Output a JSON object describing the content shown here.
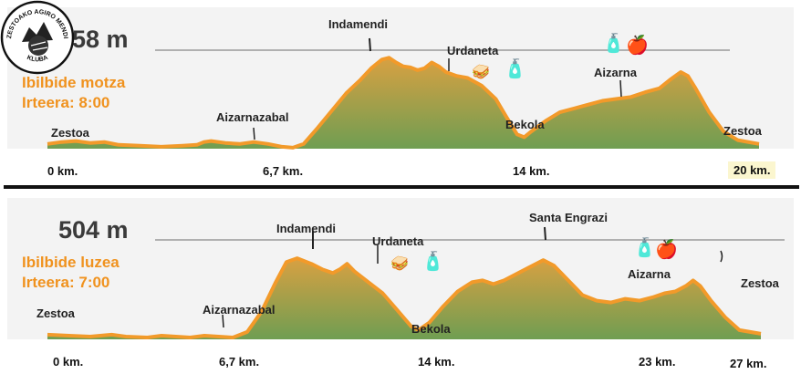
{
  "colors": {
    "fill_top": "#d8a042",
    "fill_bottom": "#6f9e52",
    "outline": "#f29a2a",
    "text_orange": "#f0921e",
    "band": "#f3f3f3",
    "reference_line": "#9a9a9a"
  },
  "icons": {
    "water": "water-bottle-icon",
    "apple": "apple-icon",
    "sandwich": "sandwich-icon",
    "logo": "club-logo-icon"
  },
  "logo_text": {
    "top": "ZESTOAKO AGIRO MENDI",
    "bottom": "KLUBA"
  },
  "chart_data": [
    {
      "type": "area",
      "peak_label": "458 m",
      "route_name": "Ibilbide motza",
      "start_label": "Irteera: 8:00",
      "distance_ticks": [
        "0 km.",
        "6,7 km.",
        "14 km.",
        "20 km."
      ],
      "places": [
        "Zestoa",
        "Aizarnazabal",
        "Indamendi",
        "Urdaneta",
        "Bekola",
        "Aizarna",
        "Zestoa"
      ],
      "profile": [
        [
          0,
          0.05
        ],
        [
          0.02,
          0.07
        ],
        [
          0.04,
          0.08
        ],
        [
          0.06,
          0.06
        ],
        [
          0.08,
          0.07
        ],
        [
          0.1,
          0.04
        ],
        [
          0.13,
          0.03
        ],
        [
          0.16,
          0.02
        ],
        [
          0.19,
          0.03
        ],
        [
          0.21,
          0.04
        ],
        [
          0.22,
          0.07
        ],
        [
          0.23,
          0.08
        ],
        [
          0.25,
          0.06
        ],
        [
          0.27,
          0.05
        ],
        [
          0.29,
          0.07
        ],
        [
          0.31,
          0.05
        ],
        [
          0.33,
          0.02
        ],
        [
          0.345,
          0.01
        ],
        [
          0.36,
          0.05
        ],
        [
          0.38,
          0.22
        ],
        [
          0.4,
          0.4
        ],
        [
          0.42,
          0.58
        ],
        [
          0.44,
          0.72
        ],
        [
          0.455,
          0.84
        ],
        [
          0.47,
          0.93
        ],
        [
          0.48,
          0.95
        ],
        [
          0.49,
          0.9
        ],
        [
          0.5,
          0.86
        ],
        [
          0.51,
          0.85
        ],
        [
          0.52,
          0.82
        ],
        [
          0.53,
          0.84
        ],
        [
          0.54,
          0.9
        ],
        [
          0.55,
          0.86
        ],
        [
          0.56,
          0.8
        ],
        [
          0.575,
          0.76
        ],
        [
          0.59,
          0.74
        ],
        [
          0.61,
          0.66
        ],
        [
          0.63,
          0.52
        ],
        [
          0.645,
          0.33
        ],
        [
          0.66,
          0.15
        ],
        [
          0.67,
          0.12
        ],
        [
          0.68,
          0.18
        ],
        [
          0.7,
          0.29
        ],
        [
          0.72,
          0.38
        ],
        [
          0.74,
          0.42
        ],
        [
          0.76,
          0.46
        ],
        [
          0.78,
          0.5
        ],
        [
          0.8,
          0.52
        ],
        [
          0.82,
          0.54
        ],
        [
          0.84,
          0.59
        ],
        [
          0.86,
          0.63
        ],
        [
          0.875,
          0.72
        ],
        [
          0.89,
          0.8
        ],
        [
          0.9,
          0.76
        ],
        [
          0.91,
          0.64
        ],
        [
          0.93,
          0.38
        ],
        [
          0.95,
          0.18
        ],
        [
          0.97,
          0.09
        ],
        [
          1.0,
          0.05
        ]
      ]
    },
    {
      "type": "area",
      "peak_label": "504 m",
      "route_name": "Ibilbide luzea",
      "start_label": "Irteera: 7:00",
      "distance_ticks": [
        "0 km.",
        "6,7 km.",
        "14 km.",
        "23 km.",
        "27 km."
      ],
      "places": [
        "Zestoa",
        "Aizarnazabal",
        "Indamendi",
        "Urdaneta",
        "Bekola",
        "Santa Engrazi",
        "Aizarna",
        "Zestoa"
      ],
      "profile": [
        [
          0,
          0.05
        ],
        [
          0.03,
          0.04
        ],
        [
          0.06,
          0.03
        ],
        [
          0.09,
          0.05
        ],
        [
          0.11,
          0.03
        ],
        [
          0.14,
          0.02
        ],
        [
          0.16,
          0.04
        ],
        [
          0.18,
          0.03
        ],
        [
          0.2,
          0.02
        ],
        [
          0.22,
          0.04
        ],
        [
          0.24,
          0.03
        ],
        [
          0.26,
          0.02
        ],
        [
          0.28,
          0.08
        ],
        [
          0.3,
          0.3
        ],
        [
          0.32,
          0.62
        ],
        [
          0.335,
          0.84
        ],
        [
          0.35,
          0.88
        ],
        [
          0.37,
          0.82
        ],
        [
          0.385,
          0.76
        ],
        [
          0.4,
          0.72
        ],
        [
          0.41,
          0.76
        ],
        [
          0.42,
          0.82
        ],
        [
          0.43,
          0.74
        ],
        [
          0.45,
          0.62
        ],
        [
          0.47,
          0.5
        ],
        [
          0.49,
          0.32
        ],
        [
          0.51,
          0.14
        ],
        [
          0.52,
          0.1
        ],
        [
          0.535,
          0.18
        ],
        [
          0.555,
          0.36
        ],
        [
          0.575,
          0.52
        ],
        [
          0.595,
          0.62
        ],
        [
          0.61,
          0.64
        ],
        [
          0.625,
          0.6
        ],
        [
          0.64,
          0.64
        ],
        [
          0.66,
          0.72
        ],
        [
          0.68,
          0.8
        ],
        [
          0.695,
          0.86
        ],
        [
          0.71,
          0.8
        ],
        [
          0.73,
          0.64
        ],
        [
          0.75,
          0.48
        ],
        [
          0.77,
          0.42
        ],
        [
          0.79,
          0.4
        ],
        [
          0.81,
          0.44
        ],
        [
          0.83,
          0.42
        ],
        [
          0.85,
          0.46
        ],
        [
          0.865,
          0.5
        ],
        [
          0.88,
          0.52
        ],
        [
          0.895,
          0.58
        ],
        [
          0.905,
          0.64
        ],
        [
          0.915,
          0.58
        ],
        [
          0.93,
          0.42
        ],
        [
          0.95,
          0.24
        ],
        [
          0.97,
          0.1
        ],
        [
          1.0,
          0.06
        ]
      ]
    }
  ]
}
